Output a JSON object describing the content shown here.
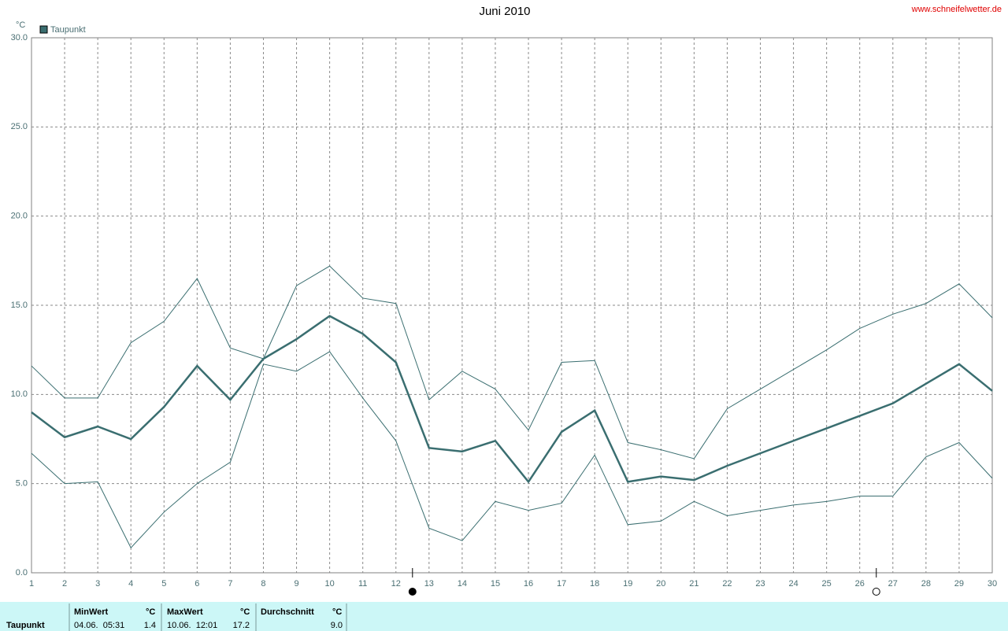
{
  "chart_data": {
    "type": "line",
    "title": "Juni 2010",
    "source": "www.schneifelwetter.de",
    "y_unit": "°C",
    "x": [
      1,
      2,
      3,
      4,
      5,
      6,
      7,
      8,
      9,
      10,
      11,
      12,
      13,
      14,
      15,
      16,
      17,
      18,
      19,
      20,
      21,
      22,
      23,
      24,
      25,
      26,
      27,
      28,
      29,
      30
    ],
    "xlim": [
      1,
      30
    ],
    "xticks": [
      1,
      2,
      3,
      4,
      5,
      6,
      7,
      8,
      9,
      10,
      11,
      12,
      13,
      14,
      15,
      16,
      17,
      18,
      19,
      20,
      21,
      22,
      23,
      24,
      25,
      26,
      27,
      28,
      29,
      30
    ],
    "ylim": [
      0,
      30
    ],
    "yticks": [
      {
        "value": 0,
        "label": "0.0"
      },
      {
        "value": 5,
        "label": "5.0"
      },
      {
        "value": 10,
        "label": "10.0"
      },
      {
        "value": 15,
        "label": "15.0"
      },
      {
        "value": 20,
        "label": "20.0"
      },
      {
        "value": 25,
        "label": "25.0"
      },
      {
        "value": 30,
        "label": "30.0"
      }
    ],
    "grid": true,
    "legend": "top-left",
    "series": [
      {
        "name": "Taupunkt",
        "color": "#3a6e70",
        "values": [
          9.0,
          7.6,
          8.2,
          7.5,
          9.3,
          11.6,
          9.7,
          12.0,
          13.1,
          14.4,
          13.4,
          11.8,
          7.0,
          6.8,
          7.4,
          5.1,
          7.9,
          9.1,
          5.1,
          5.4,
          5.2,
          6.0,
          6.7,
          7.4,
          8.1,
          8.8,
          9.5,
          10.6,
          11.7,
          10.2
        ],
        "max_values": [
          11.6,
          9.8,
          9.8,
          12.9,
          14.1,
          16.5,
          12.6,
          12.0,
          16.1,
          17.2,
          15.4,
          15.1,
          9.7,
          11.3,
          10.3,
          8.0,
          11.8,
          11.9,
          7.3,
          6.9,
          6.4,
          9.2,
          10.3,
          11.4,
          12.5,
          13.7,
          14.5,
          15.1,
          16.2,
          14.3
        ],
        "min_values": [
          6.7,
          5.0,
          5.1,
          1.4,
          3.4,
          5.0,
          6.2,
          11.7,
          11.3,
          12.4,
          9.8,
          7.4,
          2.5,
          1.8,
          4.0,
          3.5,
          3.9,
          6.6,
          2.7,
          2.9,
          4.0,
          3.2,
          3.5,
          3.8,
          4.0,
          4.3,
          4.3,
          6.5,
          7.3,
          5.3
        ]
      }
    ],
    "moon_phases": [
      {
        "x": 12.5,
        "filled": true
      },
      {
        "x": 26.5,
        "filled": false
      }
    ]
  },
  "stats": {
    "row_label": "Taupunkt",
    "columns": [
      {
        "title": "MinWert",
        "unit": "°C",
        "time": "04.06.  05:31",
        "value": "1.4"
      },
      {
        "title": "MaxWert",
        "unit": "°C",
        "time": "10.06.  12:01",
        "value": "17.2"
      },
      {
        "title": "Durchschnitt",
        "unit": "°C",
        "value": "9.0"
      }
    ]
  }
}
